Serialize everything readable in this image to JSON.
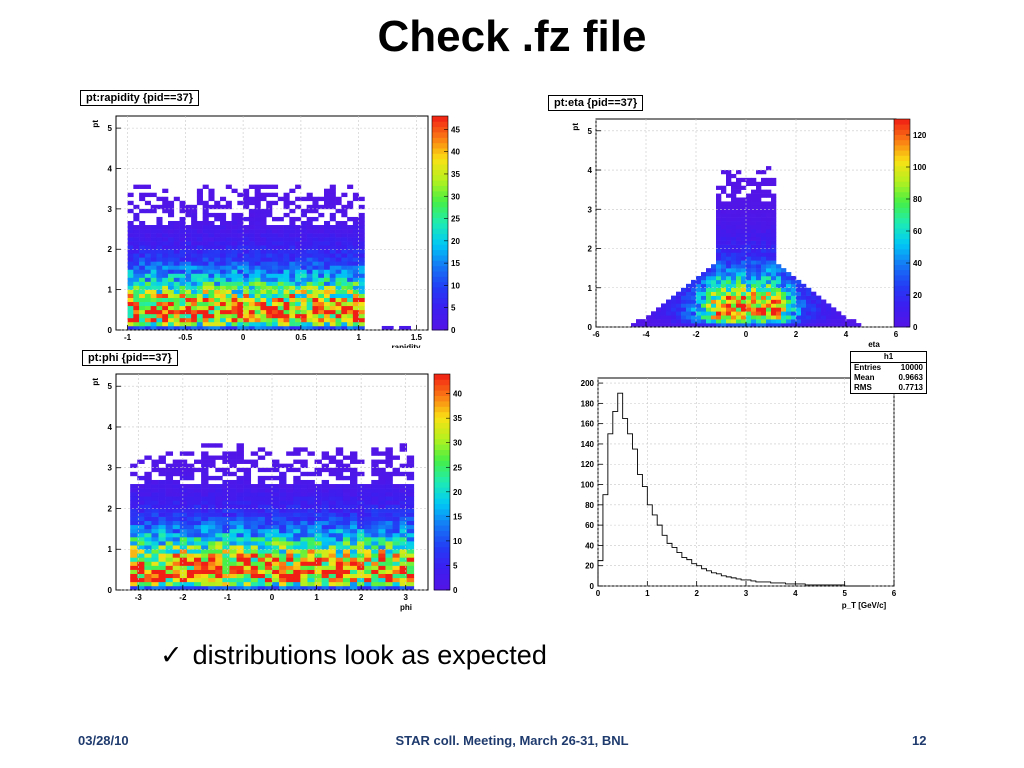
{
  "slide": {
    "title": "Check .fz file",
    "bullet": "distributions look as expected",
    "footer_date": "03/28/10",
    "footer_center": "STAR coll. Meeting, March 26-31, BNL",
    "footer_page": "12"
  },
  "chart_data": [
    {
      "type": "heatmap",
      "title": "pt:rapidity {pid==37}",
      "xlabel": "rapidity",
      "ylabel": "pt",
      "xlim": [
        -1.1,
        1.6
      ],
      "ylim": [
        0,
        5.3
      ],
      "xticks": [
        "-1",
        "-0.5",
        "0",
        "0.5",
        "1",
        "1.5"
      ],
      "yticks": [
        "0",
        "1",
        "2",
        "3",
        "4",
        "5"
      ],
      "zmax": 48,
      "zticks": [
        "0",
        "5",
        "10",
        "15",
        "20",
        "25",
        "30",
        "35",
        "40",
        "45"
      ],
      "grid": true,
      "x_range": [
        -1.0,
        1.05
      ],
      "peak_pt": 0.45,
      "extra_x_points": [
        1.25,
        1.4
      ]
    },
    {
      "type": "heatmap",
      "title": "pt:eta {pid==37}",
      "xlabel": "eta",
      "ylabel": "pt",
      "xlim": [
        -6,
        6
      ],
      "ylim": [
        0,
        5.3
      ],
      "xticks": [
        "-6",
        "-4",
        "-2",
        "0",
        "2",
        "4",
        "6"
      ],
      "yticks": [
        "0",
        "1",
        "2",
        "3",
        "4",
        "5"
      ],
      "zmax": 130,
      "zticks": [
        "0",
        "20",
        "40",
        "60",
        "80",
        "100",
        "120"
      ],
      "grid": true,
      "eta_core": 1.2,
      "peak_pt": 0.45
    },
    {
      "type": "heatmap",
      "title": "pt:phi {pid==37}",
      "xlabel": "phi",
      "ylabel": "pt",
      "xlim": [
        -3.5,
        3.5
      ],
      "ylim": [
        0,
        5.3
      ],
      "xticks": [
        "-3",
        "-2",
        "-1",
        "0",
        "1",
        "2",
        "3"
      ],
      "yticks": [
        "0",
        "1",
        "2",
        "3",
        "4",
        "5"
      ],
      "zmax": 44,
      "zticks": [
        "0",
        "5",
        "10",
        "15",
        "20",
        "25",
        "30",
        "35",
        "40"
      ],
      "grid": true,
      "x_range": [
        -3.14,
        3.14
      ],
      "peak_pt": 0.45
    },
    {
      "type": "line",
      "title": "h1",
      "xlabel": "p_T [GeV/c]",
      "ylabel": "",
      "xlim": [
        0,
        6
      ],
      "ylim": [
        0,
        205
      ],
      "xticks": [
        "0",
        "1",
        "2",
        "3",
        "4",
        "5",
        "6"
      ],
      "yticks": [
        "0",
        "20",
        "40",
        "60",
        "80",
        "100",
        "120",
        "140",
        "160",
        "180",
        "200"
      ],
      "grid": true,
      "stats": {
        "entries_label": "Entries",
        "entries": "10000",
        "mean_label": "Mean",
        "mean": "0.9663",
        "rms_label": "RMS",
        "rms": "0.7713"
      },
      "x": [
        0.05,
        0.15,
        0.25,
        0.35,
        0.45,
        0.55,
        0.65,
        0.75,
        0.85,
        0.95,
        1.05,
        1.15,
        1.25,
        1.35,
        1.45,
        1.55,
        1.65,
        1.75,
        1.85,
        1.95,
        2.05,
        2.15,
        2.25,
        2.35,
        2.45,
        2.55,
        2.65,
        2.75,
        2.85,
        2.95,
        3.05,
        3.15,
        3.25,
        3.35,
        3.45,
        3.55,
        3.65,
        3.75,
        3.85,
        3.95,
        4.05,
        4.15,
        4.25,
        4.35,
        4.45,
        4.55,
        4.65,
        4.75,
        4.85,
        4.95,
        5.05,
        5.15,
        5.25,
        5.35,
        5.45
      ],
      "values": [
        25,
        90,
        150,
        172,
        190,
        165,
        150,
        135,
        110,
        98,
        80,
        70,
        60,
        50,
        42,
        38,
        33,
        28,
        26,
        22,
        20,
        17,
        15,
        13,
        12,
        10,
        9,
        8,
        7,
        6,
        6,
        5,
        4,
        4,
        4,
        3,
        3,
        3,
        2,
        2,
        2,
        2,
        1,
        1,
        1,
        1,
        1,
        1,
        1,
        1,
        0,
        0,
        0,
        0,
        0
      ]
    }
  ]
}
